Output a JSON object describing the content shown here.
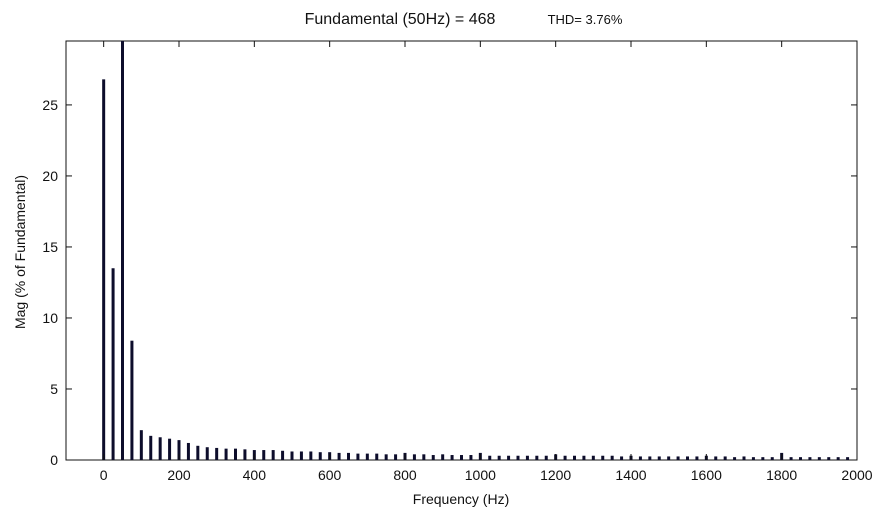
{
  "chart_data": {
    "type": "bar",
    "title": "Fundamental (50Hz) = 468",
    "subtitle": "THD= 3.76%",
    "xlabel": "Frequency (Hz)",
    "ylabel": "Mag (% of Fundamental)",
    "xlim": [
      -100,
      2000
    ],
    "ylim": [
      0,
      29.5
    ],
    "xticks": [
      0,
      200,
      400,
      600,
      800,
      1000,
      1200,
      1400,
      1600,
      1800,
      2000
    ],
    "yticks": [
      0,
      5,
      10,
      15,
      20,
      25
    ],
    "grid": false,
    "x": [
      0,
      25,
      50,
      75,
      100,
      125,
      150,
      175,
      200,
      225,
      250,
      275,
      300,
      325,
      350,
      375,
      400,
      425,
      450,
      475,
      500,
      525,
      550,
      575,
      600,
      625,
      650,
      675,
      700,
      725,
      750,
      775,
      800,
      825,
      850,
      875,
      900,
      925,
      950,
      975,
      1000,
      1025,
      1050,
      1075,
      1100,
      1125,
      1150,
      1175,
      1200,
      1225,
      1250,
      1275,
      1300,
      1325,
      1350,
      1375,
      1400,
      1425,
      1450,
      1475,
      1500,
      1525,
      1550,
      1575,
      1600,
      1625,
      1650,
      1675,
      1700,
      1725,
      1750,
      1775,
      1800,
      1825,
      1850,
      1875,
      1900,
      1925,
      1950,
      1975
    ],
    "values": [
      26.8,
      13.5,
      29.5,
      8.4,
      2.1,
      1.7,
      1.6,
      1.5,
      1.4,
      1.2,
      1.0,
      0.9,
      0.85,
      0.8,
      0.8,
      0.75,
      0.7,
      0.7,
      0.7,
      0.65,
      0.6,
      0.6,
      0.6,
      0.55,
      0.55,
      0.5,
      0.5,
      0.45,
      0.45,
      0.45,
      0.4,
      0.4,
      0.5,
      0.4,
      0.4,
      0.35,
      0.4,
      0.35,
      0.35,
      0.35,
      0.5,
      0.3,
      0.3,
      0.3,
      0.3,
      0.3,
      0.3,
      0.3,
      0.4,
      0.3,
      0.3,
      0.3,
      0.3,
      0.3,
      0.3,
      0.25,
      0.3,
      0.25,
      0.25,
      0.25,
      0.25,
      0.25,
      0.25,
      0.25,
      0.3,
      0.25,
      0.25,
      0.2,
      0.25,
      0.2,
      0.2,
      0.2,
      0.5,
      0.2,
      0.2,
      0.2,
      0.2,
      0.2,
      0.2,
      0.2
    ],
    "colors": {
      "bar": "#0d0d2b",
      "axes": "#111111",
      "background": "#ffffff"
    }
  }
}
